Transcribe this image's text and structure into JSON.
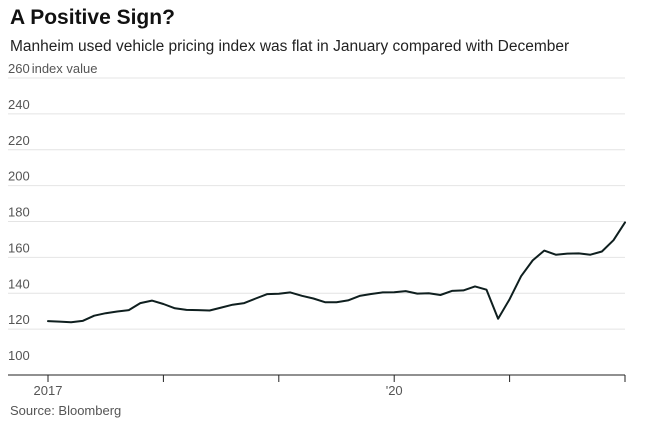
{
  "chart_data": {
    "type": "line",
    "title": "A Positive Sign?",
    "subtitle": "Manheim used vehicle pricing index was flat in January compared with December",
    "ylabel_unit": "index value",
    "source": "Source: Bloomberg",
    "ylim": [
      100,
      260
    ],
    "yticks": [
      100,
      120,
      140,
      160,
      180,
      200,
      220,
      240,
      260
    ],
    "xlim": [
      0,
      50
    ],
    "xticks": [
      {
        "pos": 0,
        "label": "2017"
      },
      {
        "pos": 10,
        "label": ""
      },
      {
        "pos": 20,
        "label": ""
      },
      {
        "pos": 30,
        "label": "'20"
      },
      {
        "pos": 40,
        "label": ""
      },
      {
        "pos": 50,
        "label": ""
      }
    ],
    "grid": true,
    "line_color": "#0f1f1f",
    "series": [
      {
        "name": "",
        "x": [
          0,
          1,
          2,
          3,
          4,
          5,
          6,
          7,
          8,
          9,
          10,
          11,
          12,
          13,
          14,
          15,
          16,
          17,
          18,
          19,
          20,
          21,
          22,
          23,
          24,
          25,
          26,
          27,
          28,
          29,
          30,
          31,
          32,
          33,
          34,
          35,
          36,
          37,
          38,
          39,
          40,
          41,
          42,
          43,
          44,
          45,
          46,
          47,
          48,
          49,
          50
        ],
        "values": [
          124.5,
          124.2,
          123.8,
          124.6,
          127.5,
          128.9,
          129.8,
          130.6,
          134.5,
          135.9,
          134.0,
          131.6,
          130.7,
          130.6,
          130.4,
          132.0,
          133.6,
          134.5,
          137.1,
          139.5,
          139.7,
          140.5,
          138.6,
          137.1,
          135.0,
          135.0,
          136.0,
          138.5,
          139.6,
          140.5,
          140.6,
          141.2,
          139.8,
          140.0,
          139.0,
          141.3,
          141.6,
          143.8,
          142.0,
          125.8,
          136.7,
          149.5,
          158.3,
          163.8,
          161.5,
          162.1,
          162.2,
          161.5,
          163.3,
          169.6,
          179.5
        ]
      }
    ]
  }
}
